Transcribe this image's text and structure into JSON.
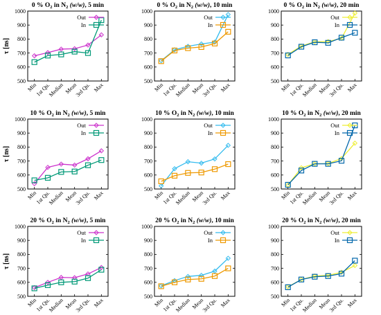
{
  "figure": {
    "categories": [
      "Min",
      "1st Qu.",
      "Median",
      "Mean",
      "3rd Qu.",
      "Max"
    ]
  },
  "chart_data": [
    {
      "type": "line",
      "title_main": "0 % O",
      "title_sub": "2",
      "title_tail": " in N",
      "title_sub2": "2",
      "title_paren": "(w/w)",
      "title_end": ", 5 min",
      "ylabel": "τ [ns]",
      "ylim": [
        500,
        1000
      ],
      "yticks": [
        500,
        600,
        700,
        800,
        900,
        1000
      ],
      "legend": "top-right",
      "colors": [
        "#cc33cc",
        "#009977"
      ],
      "markers": [
        "diamond",
        "square"
      ],
      "series": [
        {
          "name": "Out",
          "values": [
            680,
            703,
            728,
            731,
            757,
            830
          ]
        },
        {
          "name": "In",
          "values": [
            635,
            682,
            690,
            710,
            700,
            935
          ]
        }
      ]
    },
    {
      "type": "line",
      "title_main": "0 % O",
      "title_sub": "2",
      "title_tail": " in N",
      "title_sub2": "2",
      "title_paren": "(w/w)",
      "title_end": ", 10 min",
      "ylabel": "",
      "ylim": [
        500,
        1000
      ],
      "yticks": [
        500,
        600,
        700,
        800,
        900,
        1000
      ],
      "legend": "top-right",
      "colors": [
        "#33bbee",
        "#ee9900"
      ],
      "markers": [
        "diamond",
        "square"
      ],
      "series": [
        {
          "name": "Out",
          "values": [
            645,
            723,
            748,
            765,
            778,
            975
          ]
        },
        {
          "name": "In",
          "values": [
            642,
            718,
            735,
            743,
            768,
            852
          ]
        }
      ]
    },
    {
      "type": "line",
      "title_main": "0 % O",
      "title_sub": "2",
      "title_tail": " in N",
      "title_sub2": "2",
      "title_paren": "(w/w)",
      "title_end": ", 20 min",
      "ylabel": "",
      "ylim": [
        500,
        1000
      ],
      "yticks": [
        500,
        600,
        700,
        800,
        900,
        1000
      ],
      "legend": "top-right",
      "colors": [
        "#eeee33",
        "#0066aa"
      ],
      "markers": [
        "diamond",
        "square"
      ],
      "series": [
        {
          "name": "Out",
          "values": [
            690,
            750,
            780,
            782,
            805,
            985
          ]
        },
        {
          "name": "In",
          "values": [
            683,
            745,
            777,
            773,
            810,
            845
          ]
        }
      ]
    },
    {
      "type": "line",
      "title_main": "10 % O",
      "title_sub": "2",
      "title_tail": " in N",
      "title_sub2": "2",
      "title_paren": "(w/w)",
      "title_end": ", 5 min",
      "ylabel": "τ [ns]",
      "ylim": [
        500,
        1000
      ],
      "yticks": [
        500,
        600,
        700,
        800,
        900,
        1000
      ],
      "legend": "top-right",
      "colors": [
        "#cc33cc",
        "#009977"
      ],
      "markers": [
        "diamond",
        "square"
      ],
      "series": [
        {
          "name": "Out",
          "values": [
            538,
            655,
            678,
            671,
            716,
            773
          ]
        },
        {
          "name": "In",
          "values": [
            562,
            580,
            622,
            625,
            670,
            707
          ]
        }
      ]
    },
    {
      "type": "line",
      "title_main": "10 % O",
      "title_sub": "2",
      "title_tail": " in N",
      "title_sub2": "2",
      "title_paren": "(w/w)",
      "title_end": ", 10 min",
      "ylabel": "",
      "ylim": [
        500,
        1000
      ],
      "yticks": [
        500,
        600,
        700,
        800,
        900,
        1000
      ],
      "legend": "top-right",
      "colors": [
        "#33bbee",
        "#ee9900"
      ],
      "markers": [
        "diamond",
        "square"
      ],
      "series": [
        {
          "name": "Out",
          "values": [
            522,
            645,
            695,
            685,
            715,
            812
          ]
        },
        {
          "name": "In",
          "values": [
            555,
            595,
            615,
            618,
            642,
            678
          ]
        }
      ]
    },
    {
      "type": "line",
      "title_main": "10 % O",
      "title_sub": "2",
      "title_tail": " in N",
      "title_sub2": "2",
      "title_paren": "(w/w)",
      "title_end": ", 20 min",
      "ylabel": "",
      "ylim": [
        500,
        1000
      ],
      "yticks": [
        500,
        600,
        700,
        800,
        900,
        1000
      ],
      "legend": "top-right",
      "colors": [
        "#eeee33",
        "#0066aa"
      ],
      "markers": [
        "diamond",
        "square"
      ],
      "series": [
        {
          "name": "Out",
          "values": [
            528,
            652,
            680,
            682,
            718,
            828
          ]
        },
        {
          "name": "In",
          "values": [
            530,
            632,
            680,
            680,
            702,
            955
          ]
        }
      ]
    },
    {
      "type": "line",
      "title_main": "20 % O",
      "title_sub": "2",
      "title_tail": " in N",
      "title_sub2": "2",
      "title_paren": "(w/w)",
      "title_end": ", 5 min",
      "ylabel": "τ [ns]",
      "ylim": [
        500,
        1000
      ],
      "yticks": [
        500,
        600,
        700,
        800,
        900,
        1000
      ],
      "legend": "top-right",
      "colors": [
        "#cc33cc",
        "#009977"
      ],
      "markers": [
        "diamond",
        "square"
      ],
      "series": [
        {
          "name": "Out",
          "values": [
            562,
            600,
            635,
            633,
            660,
            706
          ]
        },
        {
          "name": "In",
          "values": [
            557,
            580,
            600,
            605,
            630,
            690
          ]
        }
      ]
    },
    {
      "type": "line",
      "title_main": "20 % O",
      "title_sub": "2",
      "title_tail": " in N",
      "title_sub2": "2",
      "title_paren": "(w/w)",
      "title_end": ", 10 min",
      "ylabel": "",
      "ylim": [
        500,
        1000
      ],
      "yticks": [
        500,
        600,
        700,
        800,
        900,
        1000
      ],
      "legend": "top-right",
      "colors": [
        "#33bbee",
        "#ee9900"
      ],
      "markers": [
        "diamond",
        "square"
      ],
      "series": [
        {
          "name": "Out",
          "values": [
            575,
            612,
            642,
            650,
            680,
            772
          ]
        },
        {
          "name": "In",
          "values": [
            572,
            600,
            620,
            625,
            645,
            700
          ]
        }
      ]
    },
    {
      "type": "line",
      "title_main": "20 % O",
      "title_sub": "2",
      "title_tail": " in N",
      "title_sub2": "2",
      "title_paren": "(w/w)",
      "title_end": ", 20 min",
      "ylabel": "",
      "ylim": [
        500,
        1000
      ],
      "yticks": [
        500,
        600,
        700,
        800,
        900,
        1000
      ],
      "legend": "top-right",
      "colors": [
        "#eeee33",
        "#0066aa"
      ],
      "markers": [
        "diamond",
        "square"
      ],
      "series": [
        {
          "name": "Out",
          "values": [
            568,
            620,
            645,
            650,
            672,
            720
          ]
        },
        {
          "name": "In",
          "values": [
            565,
            620,
            640,
            645,
            662,
            755
          ]
        }
      ]
    }
  ]
}
